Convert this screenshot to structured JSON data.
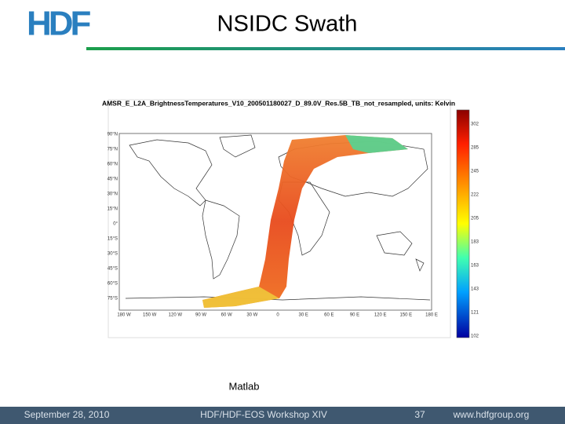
{
  "header": {
    "logo": "HDF",
    "title": "NSIDC Swath"
  },
  "figure": {
    "title": "AMSR_E_L2A_BrightnessTemperatures_V10_200501180027_D_89.0V_Res.5B_TB_not_resampled, units: Kelvin",
    "lat_labels": [
      "90°N",
      "75°N",
      "60°N",
      "45°N",
      "30°N",
      "15°N",
      "0°",
      "15°S",
      "30°S",
      "45°S",
      "60°S",
      "75°S"
    ],
    "lon_labels": [
      "180 W",
      "150 W",
      "120 W",
      "90 W",
      "60 W",
      "30 W",
      "0",
      "30 E",
      "60 E",
      "90 E",
      "120 E",
      "150 E",
      "180 E"
    ],
    "colorbar_labels": [
      "302",
      "285",
      "245",
      "222",
      "205",
      "183",
      "163",
      "143",
      "121",
      "102"
    ],
    "caption": "Matlab"
  },
  "footer": {
    "date": "September 28, 2010",
    "event": "HDF/HDF-EOS Workshop XIV",
    "page": "37",
    "url": "www.hdfgroup.org"
  }
}
